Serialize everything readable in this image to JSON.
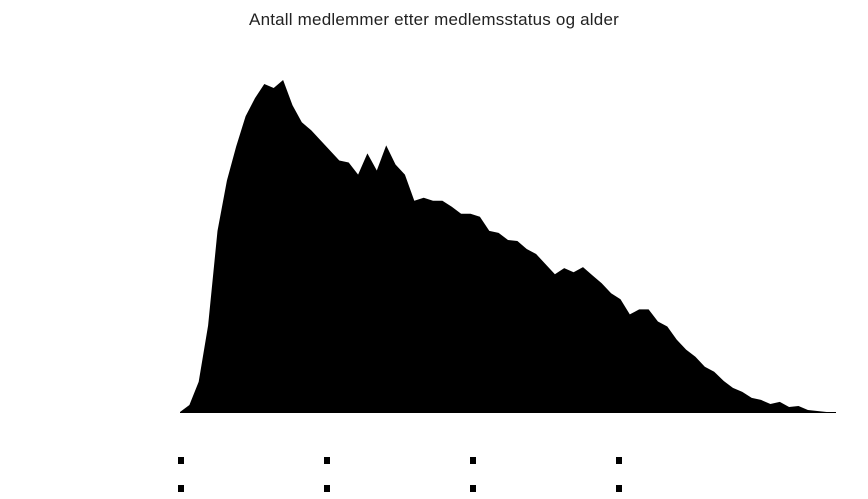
{
  "chart_data": {
    "type": "area",
    "title": "Antall medlemmer etter medlemsstatus og alder",
    "xlabel": "",
    "ylabel": "",
    "x": [
      15,
      16,
      17,
      18,
      19,
      20,
      21,
      22,
      23,
      24,
      25,
      26,
      27,
      28,
      29,
      30,
      31,
      32,
      33,
      34,
      35,
      36,
      37,
      38,
      39,
      40,
      41,
      42,
      43,
      44,
      45,
      46,
      47,
      48,
      49,
      50,
      51,
      52,
      53,
      54,
      55,
      56,
      57,
      58,
      59,
      60,
      61,
      62,
      63,
      64,
      65,
      66,
      67,
      68,
      69,
      70,
      71,
      72,
      73,
      74,
      75,
      76,
      77,
      78,
      79,
      80,
      81,
      82,
      83,
      84,
      85
    ],
    "series": [
      {
        "name": "",
        "color": "#000000",
        "values": [
          0,
          7,
          30,
          86,
          180,
          230,
          264,
          294,
          312,
          326,
          322,
          330,
          305,
          288,
          280,
          270,
          260,
          250,
          248,
          236,
          257,
          240,
          265,
          246,
          236,
          210,
          213,
          210,
          210,
          204,
          197,
          197,
          194,
          180,
          178,
          171,
          170,
          162,
          157,
          147,
          137,
          143,
          139,
          144,
          136,
          128,
          118,
          112,
          97,
          102,
          102,
          90,
          85,
          72,
          62,
          55,
          45,
          40,
          31,
          24,
          20,
          14,
          12,
          8,
          10,
          5,
          6,
          2,
          1,
          0,
          0
        ]
      }
    ],
    "xlim": [
      15,
      85
    ],
    "ylim": [
      0,
      330
    ],
    "grid": false,
    "legend_position": "bottom",
    "legend_entries": [
      "",
      "",
      "",
      "",
      "",
      "",
      "",
      ""
    ]
  }
}
